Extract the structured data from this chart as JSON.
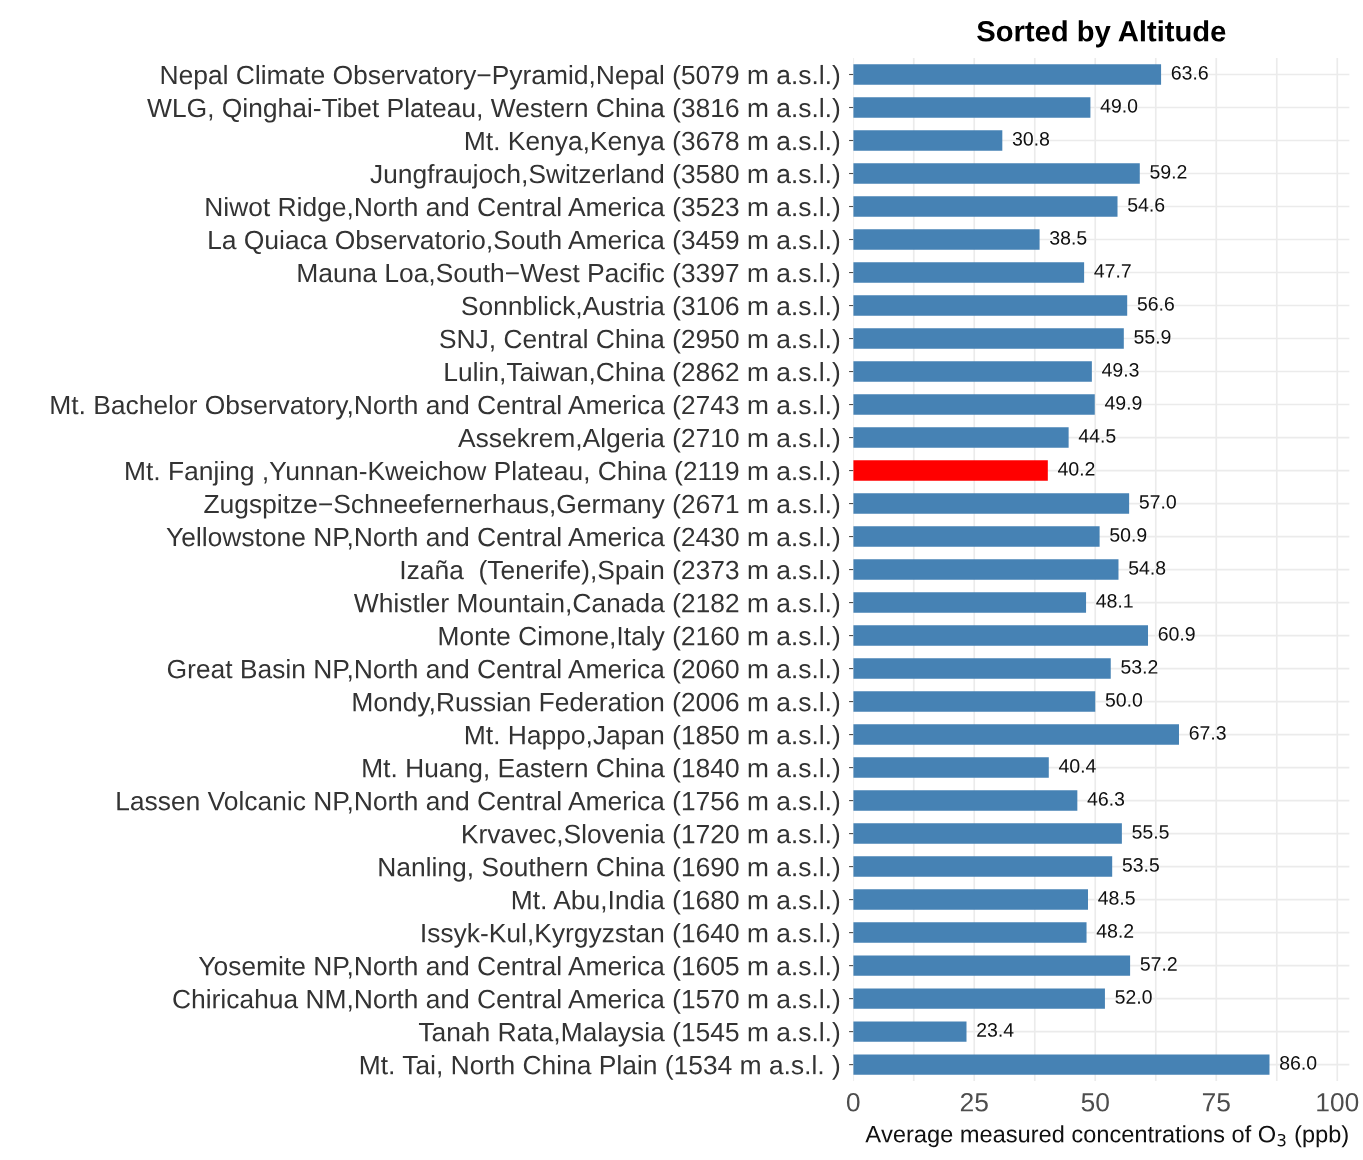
{
  "chart_data": {
    "type": "bar",
    "orientation": "horizontal",
    "title": "Sorted by Altitude",
    "xlabel": "Average measured concentrations of O$_{3}$ (ppb)",
    "categories": [
      "Nepal Climate Observatory−Pyramid,Nepal (5079 m a.s.l.)",
      "WLG, Qinghai-Tibet Plateau, Western China (3816 m a.s.l.)",
      "Mt. Kenya,Kenya (3678 m a.s.l.)",
      "Jungfraujoch,Switzerland (3580 m a.s.l.)",
      "Niwot Ridge,North and Central America (3523 m a.s.l.)",
      "La Quiaca Observatorio,South America (3459 m a.s.l.)",
      "Mauna Loa,South−West Pacific (3397 m a.s.l.)",
      "Sonnblick,Austria (3106 m a.s.l.)",
      "SNJ, Central China (2950 m a.s.l.)",
      "Lulin,Taiwan,China (2862 m a.s.l.)",
      "Mt. Bachelor Observatory,North and Central America (2743 m a.s.l.)",
      "Assekrem,Algeria (2710 m a.s.l.)",
      "Mt. Fanjing ,Yunnan-Kweichow Plateau, China (2119 m a.s.l.)",
      "Zugspitze−Schneefernerhaus,Germany (2671 m a.s.l.)",
      "Yellowstone NP,North and Central America (2430 m a.s.l.)",
      "Izaña  (Tenerife),Spain (2373 m a.s.l.)",
      "Whistler Mountain,Canada (2182 m a.s.l.)",
      "Monte Cimone,Italy (2160 m a.s.l.)",
      "Great Basin NP,North and Central America (2060 m a.s.l.)",
      "Mondy,Russian Federation (2006 m a.s.l.)",
      "Mt. Happo,Japan (1850 m a.s.l.)",
      "Mt. Huang, Eastern China (1840 m a.s.l.)",
      "Lassen Volcanic NP,North and Central America (1756 m a.s.l.)",
      "Krvavec,Slovenia (1720 m a.s.l.)",
      "Nanling, Southern China (1690 m a.s.l.)",
      "Mt. Abu,India (1680 m a.s.l.)",
      "Issyk-Kul,Kyrgyzstan (1640 m a.s.l.)",
      "Yosemite NP,North and Central America (1605 m a.s.l.)",
      "Chiricahua NM,North and Central America (1570 m a.s.l.)",
      "Tanah Rata,Malaysia (1545 m a.s.l.)",
      "Mt. Tai, North China Plain (1534 m a.s.l. )"
    ],
    "values": [
      63.6,
      49.0,
      30.8,
      59.2,
      54.6,
      38.5,
      47.7,
      56.6,
      55.9,
      49.3,
      49.9,
      44.5,
      40.2,
      57.0,
      50.9,
      54.8,
      48.1,
      60.9,
      53.2,
      50.0,
      67.3,
      40.4,
      46.3,
      55.5,
      53.5,
      48.5,
      48.2,
      57.2,
      52.0,
      23.4,
      86.0
    ],
    "value_labels": [
      "63.6",
      "49.0",
      "30.8",
      "59.2",
      "54.6",
      "38.5",
      "47.7",
      "56.6",
      "55.9",
      "49.3",
      "49.9",
      "44.5",
      "40.2",
      "57.0",
      "50.9",
      "54.8",
      "48.1",
      "60.9",
      "53.2",
      "50.0",
      "67.3",
      "40.4",
      "46.3",
      "55.5",
      "53.5",
      "48.5",
      "48.2",
      "57.2",
      "52.0",
      "23.4",
      "86.0"
    ],
    "colors": [
      "#4682b4",
      "#4682b4",
      "#4682b4",
      "#4682b4",
      "#4682b4",
      "#4682b4",
      "#4682b4",
      "#4682b4",
      "#4682b4",
      "#4682b4",
      "#4682b4",
      "#4682b4",
      "#ff0000",
      "#4682b4",
      "#4682b4",
      "#4682b4",
      "#4682b4",
      "#4682b4",
      "#4682b4",
      "#4682b4",
      "#4682b4",
      "#4682b4",
      "#4682b4",
      "#4682b4",
      "#4682b4",
      "#4682b4",
      "#4682b4",
      "#4682b4",
      "#4682b4",
      "#4682b4",
      "#4682b4"
    ],
    "xlim": [
      0,
      102.5
    ],
    "xticks": [
      0,
      {
        "value": 12.5,
        "label": null
      },
      25,
      {
        "value": 37.5,
        "label": null
      },
      50,
      {
        "value": 62.5,
        "label": null
      },
      75,
      {
        "value": 87.5,
        "label": null
      },
      100
    ],
    "grid": true
  }
}
